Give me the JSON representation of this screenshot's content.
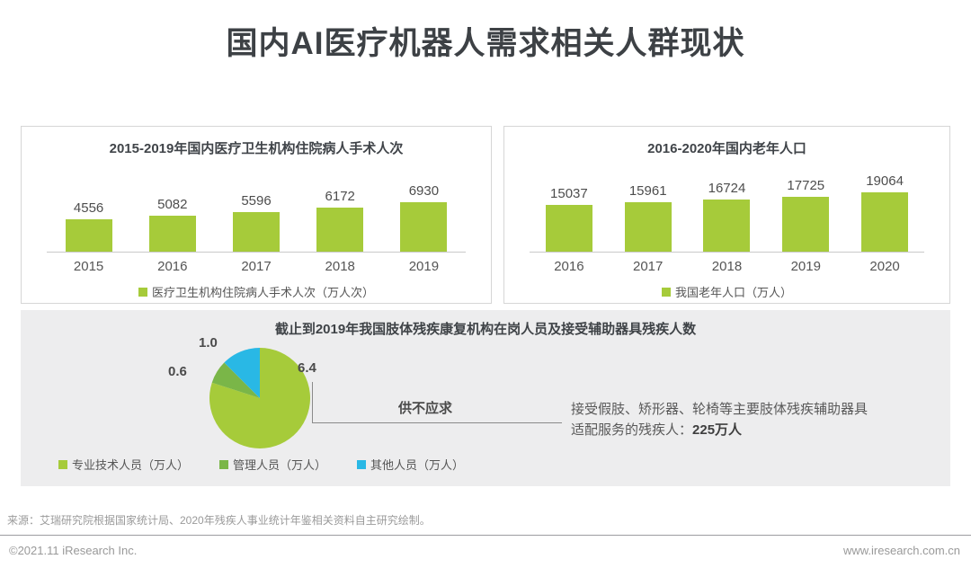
{
  "page": {
    "title": "国内AI医疗机器人需求相关人群现状"
  },
  "colors": {
    "primary_green": "#a6cb3a",
    "dark_green": "#7ab648",
    "cyan": "#29b8e5",
    "axis_gray": "#c9c9c9"
  },
  "chart_data": [
    {
      "type": "bar",
      "title": "2015-2019年国内医疗卫生机构住院病人手术人次",
      "categories": [
        "2015",
        "2016",
        "2017",
        "2018",
        "2019"
      ],
      "values": [
        4556,
        5082,
        5596,
        6172,
        6930
      ],
      "legend": "医疗卫生机构住院病人手术人次（万人次）",
      "color": "#a6cb3a",
      "ylim": [
        0,
        7000
      ],
      "grid": false,
      "legend_position": "bottom"
    },
    {
      "type": "bar",
      "title": "2016-2020年国内老年人口",
      "categories": [
        "2016",
        "2017",
        "2018",
        "2019",
        "2020"
      ],
      "values": [
        15037,
        15961,
        16724,
        17725,
        19064
      ],
      "legend": "我国老年人口（万人）",
      "color": "#a6cb3a",
      "ylim": [
        0,
        20000
      ],
      "grid": false,
      "legend_position": "bottom"
    },
    {
      "type": "pie",
      "title": "截止到2019年我国肢体残疾康复机构在岗人员及接受辅助器具残疾人数",
      "slices": [
        {
          "label": "专业技术人员（万人）",
          "value": 6.4,
          "value_label": "6.4",
          "color": "#a6cb3a"
        },
        {
          "label": "管理人员（万人）",
          "value": 0.6,
          "value_label": "0.6",
          "color": "#7ab648"
        },
        {
          "label": "其他人员（万人）",
          "value": 1.0,
          "value_label": "1.0",
          "color": "#29b8e5"
        }
      ],
      "annotation": "供不应求",
      "note_line1": "接受假肢、矫形器、轮椅等主要肢体残疾辅助器具",
      "note_line2_prefix": "适配服务的残疾人：",
      "note_line2_bold": "225万人",
      "legend_position": "bottom"
    }
  ],
  "footer": {
    "source": "来源：艾瑞研究院根据国家统计局、2020年残疾人事业统计年鉴相关资料自主研究绘制。",
    "copyright": "©2021.11 iResearch Inc.",
    "website": "www.iresearch.com.cn"
  }
}
